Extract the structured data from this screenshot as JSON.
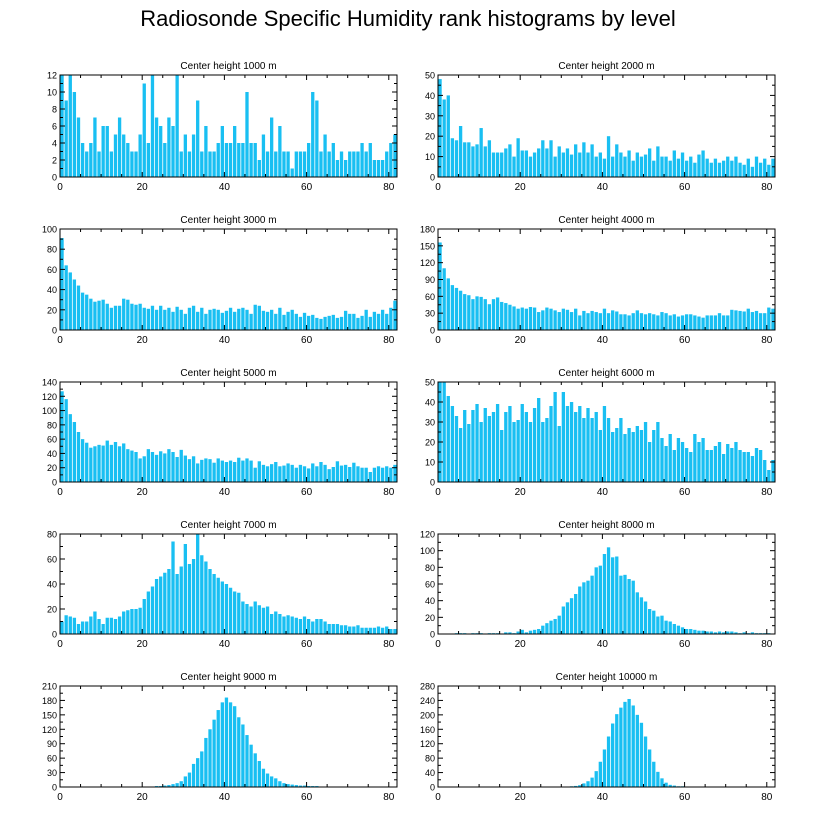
{
  "page_title": "Radiosonde Specific Humidity rank histograms by level",
  "bar_color": "#19bff2",
  "chart_data": [
    {
      "type": "bar",
      "title": "Center height 1000 m",
      "xlim": [
        0,
        82
      ],
      "xticks": [
        0,
        20,
        40,
        60,
        80
      ],
      "ylim": [
        0,
        12
      ],
      "yticks": [
        0,
        2,
        4,
        6,
        8,
        10,
        12
      ],
      "values": [
        12,
        9,
        12,
        10,
        7,
        4,
        3,
        4,
        7,
        3,
        6,
        6,
        3,
        5,
        7,
        5,
        4,
        3,
        3,
        5,
        11,
        4,
        12,
        7,
        6,
        4,
        7,
        6,
        12,
        3,
        5,
        3,
        5,
        9,
        3,
        6,
        3,
        3,
        4,
        6,
        4,
        4,
        6,
        4,
        4,
        10,
        4,
        4,
        2,
        5,
        3,
        7,
        3,
        6,
        3,
        3,
        1,
        3,
        3,
        3,
        4,
        10,
        9,
        3,
        5,
        3,
        4,
        2,
        3,
        2,
        3,
        3,
        3,
        4,
        3,
        4,
        2,
        2,
        2,
        3,
        4,
        5
      ]
    },
    {
      "type": "bar",
      "title": "Center height 2000 m",
      "xlim": [
        0,
        82
      ],
      "xticks": [
        0,
        20,
        40,
        60,
        80
      ],
      "ylim": [
        0,
        50
      ],
      "yticks": [
        0,
        10,
        20,
        30,
        40,
        50
      ],
      "values": [
        48,
        38,
        40,
        19,
        18,
        25,
        17,
        17,
        15,
        16,
        24,
        15,
        18,
        12,
        12,
        12,
        14,
        16,
        10,
        19,
        13,
        13,
        10,
        12,
        14,
        18,
        14,
        18,
        10,
        15,
        12,
        14,
        11,
        16,
        12,
        17,
        12,
        16,
        10,
        12,
        9,
        20,
        10,
        16,
        12,
        10,
        13,
        8,
        12,
        10,
        11,
        14,
        8,
        15,
        10,
        10,
        8,
        13,
        9,
        12,
        8,
        10,
        7,
        11,
        13,
        9,
        7,
        9,
        7,
        8,
        10,
        8,
        10,
        7,
        6,
        9,
        5,
        10,
        7,
        9,
        6,
        9
      ]
    },
    {
      "type": "bar",
      "title": "Center height 3000 m",
      "xlim": [
        0,
        82
      ],
      "xticks": [
        0,
        20,
        40,
        60,
        80
      ],
      "ylim": [
        0,
        100
      ],
      "yticks": [
        0,
        20,
        40,
        60,
        80,
        100
      ],
      "values": [
        91,
        64,
        57,
        50,
        44,
        37,
        35,
        31,
        28,
        29,
        30,
        26,
        22,
        24,
        24,
        31,
        30,
        26,
        25,
        26,
        22,
        21,
        24,
        20,
        24,
        20,
        22,
        18,
        23,
        20,
        16,
        22,
        24,
        18,
        22,
        16,
        20,
        21,
        20,
        17,
        19,
        22,
        18,
        21,
        22,
        20,
        16,
        25,
        24,
        19,
        18,
        20,
        16,
        22,
        15,
        18,
        20,
        16,
        13,
        17,
        14,
        15,
        12,
        11,
        13,
        14,
        15,
        12,
        13,
        19,
        16,
        16,
        12,
        14,
        20,
        13,
        18,
        16,
        20,
        16,
        22,
        29
      ]
    },
    {
      "type": "bar",
      "title": "Center height 4000 m",
      "xlim": [
        0,
        82
      ],
      "xticks": [
        0,
        20,
        40,
        60,
        80
      ],
      "ylim": [
        0,
        180
      ],
      "yticks": [
        0,
        30,
        60,
        90,
        120,
        150,
        180
      ],
      "values": [
        156,
        110,
        92,
        80,
        75,
        70,
        64,
        62,
        55,
        60,
        59,
        55,
        46,
        55,
        58,
        50,
        48,
        45,
        42,
        38,
        40,
        38,
        41,
        40,
        32,
        35,
        40,
        38,
        35,
        32,
        38,
        36,
        32,
        38,
        26,
        34,
        30,
        34,
        32,
        30,
        38,
        30,
        35,
        33,
        28,
        28,
        26,
        30,
        35,
        30,
        28,
        30,
        28,
        26,
        32,
        30,
        26,
        28,
        24,
        26,
        28,
        28,
        26,
        24,
        22,
        26,
        26,
        26,
        30,
        26,
        26,
        36,
        35,
        34,
        33,
        38,
        32,
        34,
        30,
        30,
        40,
        38
      ]
    },
    {
      "type": "bar",
      "title": "Center height 5000 m",
      "xlim": [
        0,
        82
      ],
      "xticks": [
        0,
        20,
        40,
        60,
        80
      ],
      "ylim": [
        0,
        140
      ],
      "yticks": [
        0,
        20,
        40,
        60,
        80,
        100,
        120,
        140
      ],
      "values": [
        127,
        116,
        95,
        84,
        70,
        60,
        55,
        48,
        50,
        52,
        51,
        58,
        52,
        56,
        50,
        54,
        46,
        44,
        42,
        33,
        36,
        46,
        42,
        38,
        43,
        40,
        46,
        42,
        35,
        45,
        37,
        32,
        36,
        26,
        31,
        33,
        32,
        27,
        33,
        30,
        28,
        30,
        28,
        34,
        30,
        33,
        30,
        20,
        29,
        24,
        22,
        25,
        28,
        22,
        23,
        26,
        24,
        20,
        24,
        22,
        19,
        26,
        22,
        28,
        24,
        18,
        21,
        29,
        23,
        24,
        21,
        27,
        22,
        20,
        20,
        14,
        20,
        22,
        20,
        22,
        20,
        24
      ]
    },
    {
      "type": "bar",
      "title": "Center height 6000 m",
      "xlim": [
        0,
        82
      ],
      "xticks": [
        0,
        20,
        40,
        60,
        80
      ],
      "ylim": [
        0,
        50
      ],
      "yticks": [
        0,
        10,
        20,
        30,
        40,
        50
      ],
      "values": [
        50,
        50,
        43,
        38,
        33,
        27,
        36,
        29,
        36,
        39,
        30,
        37,
        33,
        35,
        39,
        26,
        35,
        38,
        30,
        31,
        39,
        35,
        30,
        37,
        42,
        30,
        32,
        38,
        45,
        28,
        45,
        38,
        40,
        35,
        38,
        32,
        37,
        32,
        35,
        26,
        38,
        32,
        25,
        27,
        32,
        24,
        27,
        25,
        28,
        26,
        30,
        20,
        26,
        30,
        22,
        18,
        24,
        16,
        22,
        20,
        17,
        15,
        24,
        20,
        22,
        16,
        16,
        18,
        20,
        14,
        19,
        17,
        20,
        16,
        15,
        15,
        13,
        17,
        16,
        11,
        6,
        11
      ]
    },
    {
      "type": "bar",
      "title": "Center height 7000 m",
      "xlim": [
        0,
        82
      ],
      "xticks": [
        0,
        20,
        40,
        60,
        80
      ],
      "ylim": [
        0,
        80
      ],
      "yticks": [
        0,
        20,
        40,
        60,
        80
      ],
      "values": [
        10,
        15,
        14,
        13,
        8,
        10,
        10,
        14,
        18,
        12,
        8,
        13,
        13,
        12,
        14,
        18,
        19,
        20,
        20,
        21,
        28,
        34,
        38,
        44,
        46,
        49,
        52,
        74,
        48,
        54,
        72,
        56,
        60,
        80,
        63,
        58,
        52,
        48,
        45,
        42,
        40,
        37,
        34,
        33,
        26,
        24,
        22,
        26,
        23,
        21,
        22,
        16,
        18,
        16,
        14,
        15,
        14,
        13,
        12,
        14,
        12,
        10,
        12,
        12,
        10,
        8,
        8,
        8,
        7,
        7,
        6,
        6,
        7,
        5,
        5,
        5,
        5,
        6,
        5,
        6,
        4,
        4
      ]
    },
    {
      "type": "bar",
      "title": "Center height 8000 m",
      "xlim": [
        0,
        82
      ],
      "xticks": [
        0,
        20,
        40,
        60,
        80
      ],
      "ylim": [
        0,
        120
      ],
      "yticks": [
        0,
        20,
        40,
        60,
        80,
        100,
        120
      ],
      "values": [
        0,
        0,
        0,
        0,
        1,
        1,
        1,
        0,
        1,
        1,
        1,
        0,
        1,
        1,
        1,
        0,
        2,
        2,
        1,
        3,
        5,
        2,
        4,
        5,
        6,
        10,
        13,
        16,
        18,
        22,
        33,
        38,
        43,
        48,
        57,
        62,
        64,
        70,
        80,
        82,
        96,
        104,
        92,
        93,
        70,
        71,
        66,
        64,
        50,
        44,
        39,
        30,
        28,
        21,
        22,
        16,
        15,
        12,
        10,
        8,
        6,
        6,
        5,
        4,
        4,
        3,
        3,
        2,
        3,
        2,
        3,
        3,
        2,
        1,
        2,
        1,
        2,
        1,
        1,
        1,
        1,
        0
      ]
    },
    {
      "type": "bar",
      "title": "Center height 9000 m",
      "xlim": [
        0,
        82
      ],
      "xticks": [
        0,
        20,
        40,
        60,
        80
      ],
      "ylim": [
        0,
        210
      ],
      "yticks": [
        0,
        30,
        60,
        90,
        120,
        150,
        180,
        210
      ],
      "values": [
        0,
        0,
        0,
        0,
        0,
        0,
        0,
        0,
        0,
        0,
        0,
        0,
        0,
        0,
        0,
        1,
        1,
        1,
        1,
        1,
        1,
        1,
        1,
        2,
        2,
        3,
        4,
        6,
        8,
        12,
        22,
        30,
        48,
        60,
        74,
        102,
        120,
        140,
        160,
        176,
        186,
        176,
        168,
        145,
        130,
        108,
        88,
        70,
        54,
        38,
        28,
        22,
        18,
        12,
        8,
        6,
        5,
        4,
        3,
        3,
        2,
        2,
        2,
        1,
        1,
        1,
        1,
        1,
        1,
        0,
        0,
        0,
        0,
        0,
        0,
        0,
        0,
        0,
        0,
        0,
        0,
        0
      ]
    },
    {
      "type": "bar",
      "title": "Center height 10000 m",
      "xlim": [
        0,
        82
      ],
      "xticks": [
        0,
        20,
        40,
        60,
        80
      ],
      "ylim": [
        0,
        280
      ],
      "yticks": [
        0,
        40,
        80,
        120,
        160,
        200,
        240,
        280
      ],
      "values": [
        0,
        0,
        0,
        0,
        0,
        0,
        0,
        0,
        0,
        0,
        0,
        0,
        0,
        0,
        0,
        0,
        0,
        0,
        0,
        0,
        0,
        0,
        0,
        0,
        0,
        0,
        0,
        0,
        0,
        1,
        1,
        1,
        2,
        3,
        5,
        10,
        16,
        26,
        44,
        70,
        104,
        140,
        176,
        202,
        220,
        236,
        244,
        226,
        200,
        178,
        140,
        104,
        70,
        42,
        24,
        12,
        6,
        4,
        2,
        2,
        1,
        1,
        1,
        1,
        1,
        0,
        0,
        0,
        0,
        0,
        0,
        0,
        0,
        0,
        0,
        0,
        0,
        0,
        0,
        0,
        0,
        0
      ]
    }
  ]
}
